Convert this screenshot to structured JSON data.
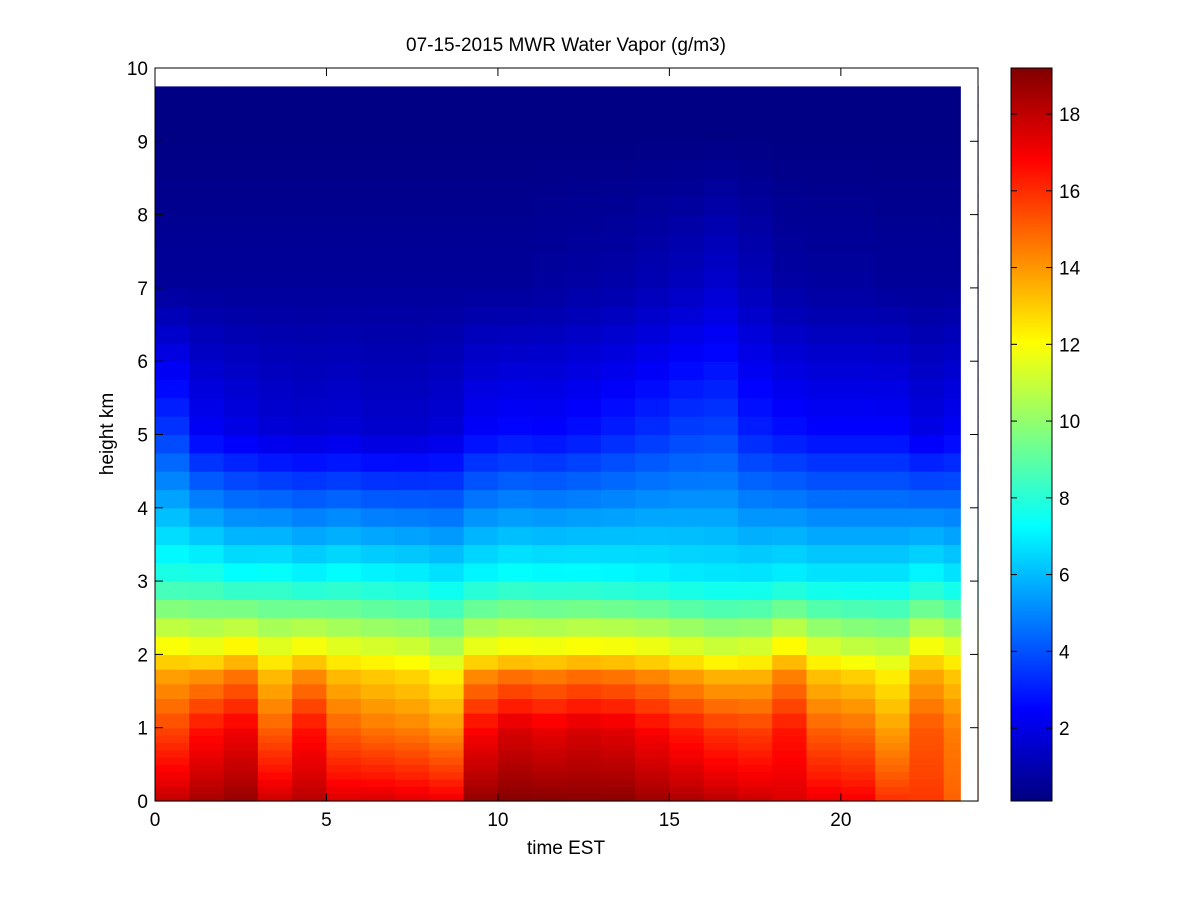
{
  "chart_data": {
    "type": "heatmap",
    "title": "07-15-2015 MWR Water Vapor (g/m3)",
    "xlabel": "time EST",
    "ylabel": "height km",
    "xlim": [
      0,
      24
    ],
    "ylim": [
      0,
      10
    ],
    "x_ticks": [
      0,
      5,
      10,
      15,
      20
    ],
    "y_ticks": [
      0,
      1,
      2,
      3,
      4,
      5,
      6,
      7,
      8,
      9,
      10
    ],
    "colormap": "jet",
    "colorbar": {
      "range": [
        0.1,
        19.2
      ],
      "ticks": [
        2,
        4,
        6,
        8,
        10,
        12,
        14,
        16,
        18
      ]
    },
    "grid": false,
    "x_hours": [
      0,
      1,
      2,
      3,
      4,
      5,
      6,
      7,
      8,
      9,
      10,
      11,
      12,
      13,
      14,
      15,
      16,
      17,
      18,
      19,
      20,
      21,
      22,
      23
    ],
    "height_levels_km": [
      0.0,
      0.1,
      0.2,
      0.3,
      0.4,
      0.5,
      0.6,
      0.7,
      0.8,
      0.9,
      1.0,
      1.2,
      1.4,
      1.6,
      1.8,
      2.0,
      2.25,
      2.5,
      2.75,
      3.0,
      3.25,
      3.5,
      3.75,
      4.0,
      4.25,
      4.5,
      4.75,
      5.0,
      5.25,
      5.5,
      5.75,
      6.0,
      6.25,
      6.5,
      6.75,
      7.0,
      7.25,
      7.5,
      7.75,
      8.0,
      8.25,
      8.5,
      8.75,
      9.0,
      9.25,
      9.5,
      9.75
    ],
    "surface_values": [
      18.0,
      18.5,
      18.8,
      17.8,
      18.2,
      17.5,
      17.6,
      17.4,
      17.2,
      18.9,
      19.1,
      19.1,
      19.0,
      19.0,
      18.7,
      18.4,
      18.1,
      17.8,
      17.5,
      17.2,
      17.0,
      16.0,
      15.8,
      15.0
    ],
    "mid_values_1km": [
      15.5,
      16.5,
      17.0,
      15.0,
      16.5,
      15.0,
      14.6,
      14.4,
      14.0,
      16.8,
      17.5,
      17.2,
      17.5,
      17.3,
      16.8,
      16.3,
      15.8,
      15.6,
      16.4,
      15.0,
      14.8,
      13.8,
      15.2,
      14.5
    ],
    "value_at_2km": [
      12.5,
      12.2,
      12.8,
      12.0,
      12.5,
      12.0,
      11.8,
      11.6,
      11.0,
      12.2,
      12.5,
      12.4,
      12.6,
      12.5,
      12.3,
      12.0,
      11.6,
      11.8,
      12.8,
      11.8,
      11.4,
      11.2,
      12.5,
      12.0
    ],
    "value_at_3km": [
      8.0,
      8.0,
      7.6,
      7.7,
      7.4,
      7.6,
      7.4,
      7.3,
      7.0,
      7.4,
      7.6,
      7.5,
      7.5,
      7.4,
      7.3,
      7.1,
      7.0,
      7.0,
      7.2,
      7.0,
      7.0,
      7.0,
      7.4,
      7.0
    ],
    "value_at_5km": [
      3.6,
      2.4,
      2.1,
      1.8,
      1.7,
      1.8,
      1.6,
      1.6,
      1.8,
      2.5,
      2.7,
      2.6,
      2.8,
      3.1,
      3.4,
      3.7,
      3.8,
      3.1,
      2.8,
      2.6,
      2.6,
      2.6,
      2.1,
      2.4
    ],
    "value_at_7km": [
      0.6,
      0.6,
      0.6,
      0.6,
      0.6,
      0.6,
      0.6,
      0.6,
      0.6,
      0.6,
      0.6,
      0.7,
      0.8,
      0.9,
      1.1,
      1.3,
      1.6,
      1.2,
      0.8,
      0.7,
      0.7,
      0.6,
      0.6,
      0.6
    ],
    "value_at_9km": [
      0.2,
      0.2,
      0.2,
      0.2,
      0.2,
      0.2,
      0.2,
      0.2,
      0.2,
      0.2,
      0.2,
      0.2,
      0.2,
      0.2,
      0.2,
      0.2,
      0.2,
      0.2,
      0.2,
      0.2,
      0.2,
      0.2,
      0.2,
      0.2
    ]
  }
}
